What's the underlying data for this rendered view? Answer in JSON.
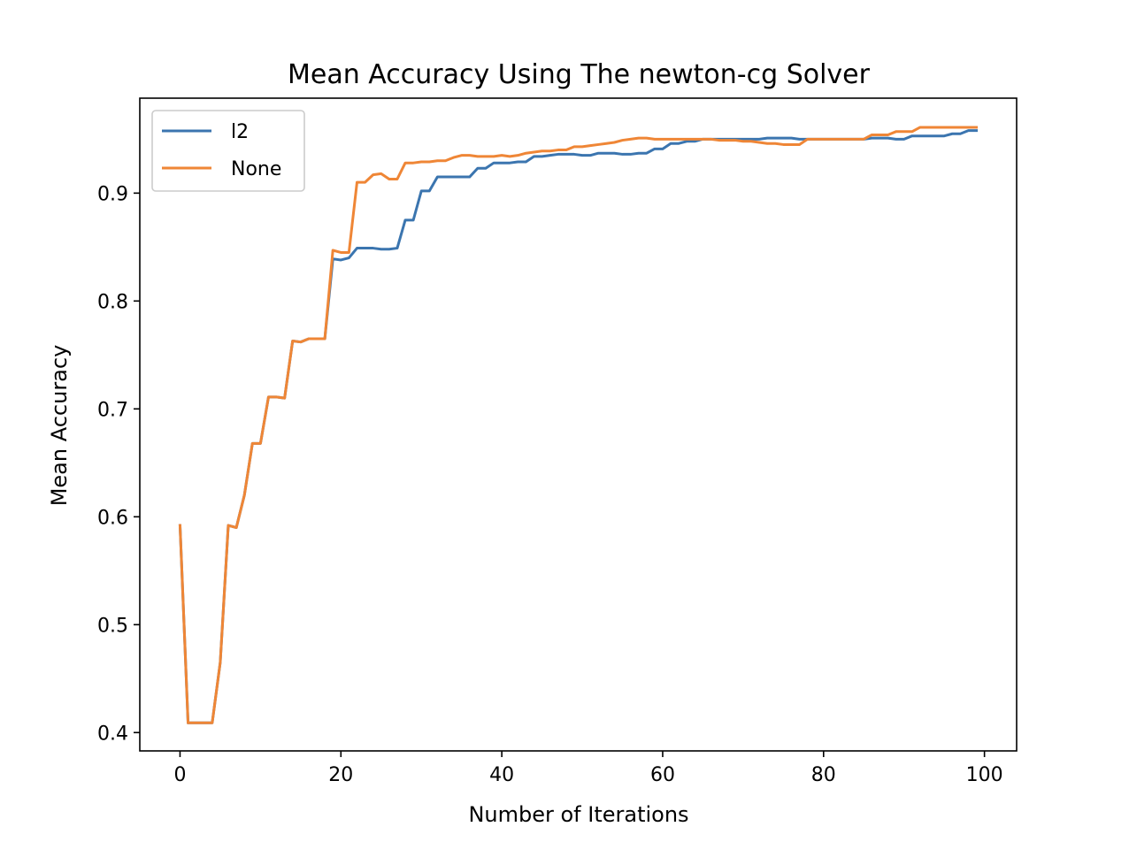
{
  "chart_data": {
    "type": "line",
    "title": "Mean Accuracy Using The newton-cg Solver",
    "xlabel": "Number of Iterations",
    "ylabel": "Mean Accuracy",
    "xlim": [
      -5,
      104
    ],
    "ylim": [
      0.383,
      0.988
    ],
    "xticks": [
      0,
      20,
      40,
      60,
      80,
      100
    ],
    "yticks": [
      0.4,
      0.5,
      0.6,
      0.7,
      0.8,
      0.9
    ],
    "ytick_labels": [
      "0.4",
      "0.5",
      "0.6",
      "0.7",
      "0.8",
      "0.9"
    ],
    "grid": false,
    "legend": "top-left",
    "x": [
      0,
      1,
      2,
      3,
      4,
      5,
      6,
      7,
      8,
      9,
      10,
      11,
      12,
      13,
      14,
      15,
      16,
      17,
      18,
      19,
      20,
      21,
      22,
      23,
      24,
      25,
      26,
      27,
      28,
      29,
      30,
      31,
      32,
      33,
      34,
      35,
      36,
      37,
      38,
      39,
      40,
      41,
      42,
      43,
      44,
      45,
      46,
      47,
      48,
      49,
      50,
      51,
      52,
      53,
      54,
      55,
      56,
      57,
      58,
      59,
      60,
      61,
      62,
      63,
      64,
      65,
      66,
      67,
      68,
      69,
      70,
      71,
      72,
      73,
      74,
      75,
      76,
      77,
      78,
      79,
      80,
      81,
      82,
      83,
      84,
      85,
      86,
      87,
      88,
      89,
      90,
      91,
      92,
      93,
      94,
      95,
      96,
      97,
      98,
      99
    ],
    "series": [
      {
        "name": "l2",
        "color": "#3b75af",
        "values": [
          0.592,
          0.409,
          0.409,
          0.409,
          0.409,
          0.465,
          0.592,
          0.59,
          0.62,
          0.668,
          0.668,
          0.711,
          0.711,
          0.71,
          0.763,
          0.762,
          0.765,
          0.765,
          0.765,
          0.839,
          0.838,
          0.84,
          0.849,
          0.849,
          0.849,
          0.848,
          0.848,
          0.849,
          0.875,
          0.875,
          0.902,
          0.902,
          0.915,
          0.915,
          0.915,
          0.915,
          0.915,
          0.923,
          0.923,
          0.928,
          0.928,
          0.928,
          0.929,
          0.929,
          0.934,
          0.934,
          0.935,
          0.936,
          0.936,
          0.936,
          0.935,
          0.935,
          0.937,
          0.937,
          0.937,
          0.936,
          0.936,
          0.937,
          0.937,
          0.941,
          0.941,
          0.946,
          0.946,
          0.948,
          0.948,
          0.95,
          0.95,
          0.95,
          0.95,
          0.95,
          0.95,
          0.95,
          0.95,
          0.951,
          0.951,
          0.951,
          0.951,
          0.95,
          0.95,
          0.95,
          0.95,
          0.95,
          0.95,
          0.95,
          0.95,
          0.95,
          0.951,
          0.951,
          0.951,
          0.95,
          0.95,
          0.953,
          0.953,
          0.953,
          0.953,
          0.953,
          0.955,
          0.955,
          0.958,
          0.958
        ]
      },
      {
        "name": "None",
        "color": "#ef8636",
        "values": [
          0.592,
          0.409,
          0.409,
          0.409,
          0.409,
          0.465,
          0.592,
          0.59,
          0.62,
          0.668,
          0.668,
          0.711,
          0.711,
          0.71,
          0.763,
          0.762,
          0.765,
          0.765,
          0.765,
          0.847,
          0.845,
          0.845,
          0.91,
          0.91,
          0.917,
          0.918,
          0.913,
          0.913,
          0.928,
          0.928,
          0.929,
          0.929,
          0.93,
          0.93,
          0.933,
          0.935,
          0.935,
          0.934,
          0.934,
          0.934,
          0.935,
          0.934,
          0.935,
          0.937,
          0.938,
          0.939,
          0.939,
          0.94,
          0.94,
          0.943,
          0.943,
          0.944,
          0.945,
          0.946,
          0.947,
          0.949,
          0.95,
          0.951,
          0.951,
          0.95,
          0.95,
          0.95,
          0.95,
          0.95,
          0.95,
          0.95,
          0.95,
          0.949,
          0.949,
          0.949,
          0.948,
          0.948,
          0.947,
          0.946,
          0.946,
          0.945,
          0.945,
          0.945,
          0.95,
          0.95,
          0.95,
          0.95,
          0.95,
          0.95,
          0.95,
          0.95,
          0.954,
          0.954,
          0.954,
          0.957,
          0.957,
          0.957,
          0.961,
          0.961,
          0.961,
          0.961,
          0.961,
          0.961,
          0.961,
          0.961
        ]
      }
    ]
  }
}
